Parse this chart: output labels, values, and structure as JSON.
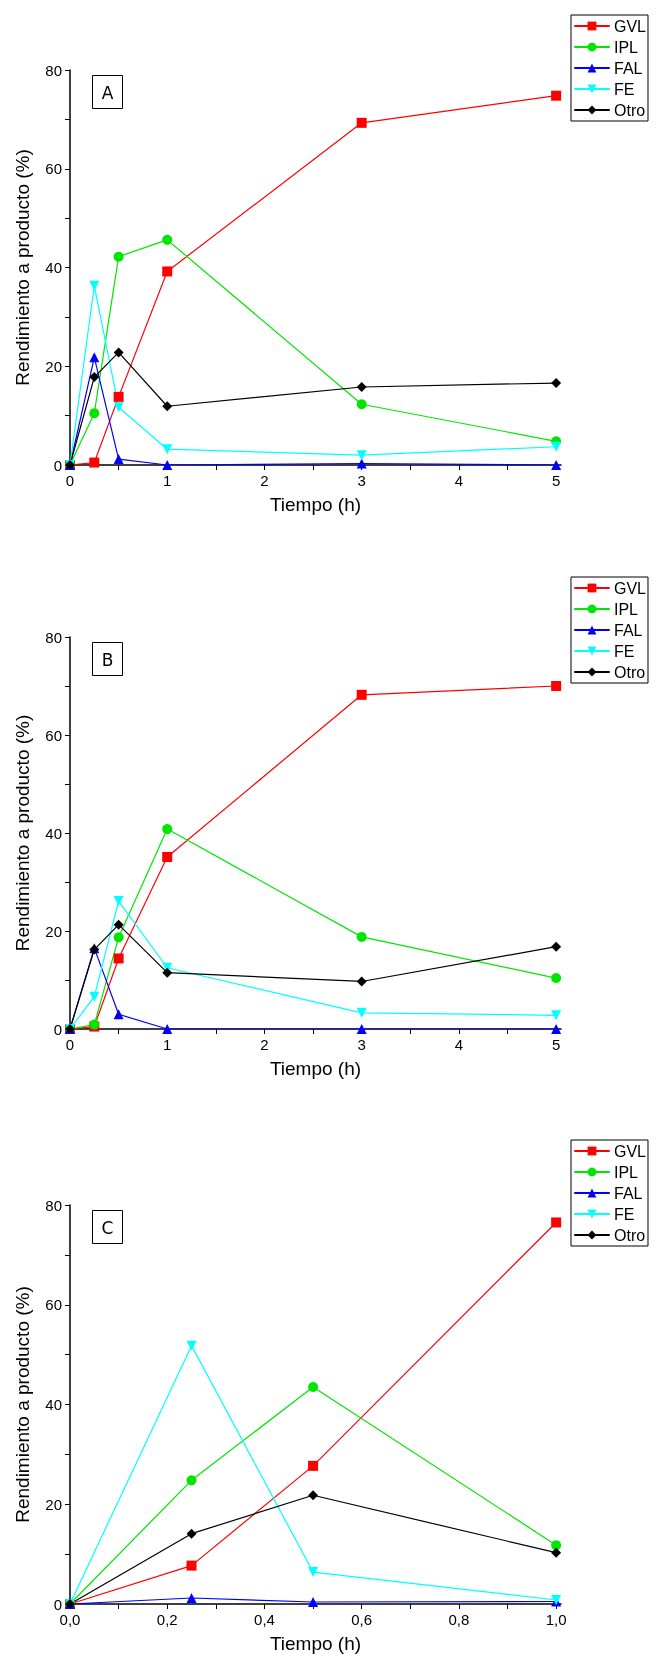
{
  "chart_data": [
    {
      "type": "line",
      "xlabel": "Tiempo (h)",
      "ylabel": "Rendimiento a producto (%)",
      "annotations": [
        "A"
      ],
      "legend": "top right",
      "grid": false,
      "xlim": [
        0,
        5.05
      ],
      "xticks": [
        0,
        {
          "value": 0.5,
          "label": null
        },
        1,
        {
          "value": 1.5,
          "label": null
        },
        2,
        {
          "value": 2.5,
          "label": null
        },
        3,
        {
          "value": 3.5,
          "label": null
        },
        4,
        {
          "value": 4.5,
          "label": null
        },
        5
      ],
      "ylim": [
        0,
        80
      ],
      "yticks": [
        0,
        {
          "value": 10,
          "label": null
        },
        20,
        {
          "value": 30,
          "label": null
        },
        40,
        {
          "value": 50,
          "label": null
        },
        60,
        {
          "value": 70,
          "label": null
        },
        80
      ],
      "x": [
        0,
        0.25,
        0.5,
        1,
        3,
        5
      ],
      "series": [
        {
          "name": "GVL",
          "color": "#ff0000",
          "marker": "square",
          "values": [
            0,
            0.5,
            13.8,
            39.2,
            69.3,
            74.8
          ]
        },
        {
          "name": "IPL",
          "color": "#00e600",
          "marker": "circle",
          "values": [
            0,
            10.5,
            42.2,
            45.6,
            12.3,
            4.8
          ]
        },
        {
          "name": "FAL",
          "color": "#0000ff",
          "marker": "triangle",
          "values": [
            0,
            21.8,
            1.2,
            0,
            0.3,
            0
          ]
        },
        {
          "name": "FE",
          "color": "#00ffff",
          "marker": "triangle-down",
          "values": [
            0,
            36.3,
            11.7,
            3.2,
            2.0,
            3.7
          ]
        },
        {
          "name": "Otro",
          "color": "#000000",
          "marker": "diamond",
          "values": [
            0,
            17.8,
            22.8,
            11.9,
            15.8,
            16.6
          ]
        }
      ]
    },
    {
      "type": "line",
      "xlabel": "Tiempo (h)",
      "ylabel": "Rendimiento a producto (%)",
      "annotations": [
        "B"
      ],
      "legend": "top right",
      "grid": false,
      "xlim": [
        0,
        5.05
      ],
      "xticks": [
        0,
        {
          "value": 0.5,
          "label": null
        },
        1,
        {
          "value": 1.5,
          "label": null
        },
        2,
        {
          "value": 2.5,
          "label": null
        },
        3,
        {
          "value": 3.5,
          "label": null
        },
        4,
        {
          "value": 4.5,
          "label": null
        },
        5
      ],
      "ylim": [
        0,
        80
      ],
      "yticks": [
        0,
        {
          "value": 10,
          "label": null
        },
        20,
        {
          "value": 30,
          "label": null
        },
        40,
        {
          "value": 50,
          "label": null
        },
        60,
        {
          "value": 70,
          "label": null
        },
        80
      ],
      "x": [
        0,
        0.25,
        0.5,
        1,
        3,
        5
      ],
      "series": [
        {
          "name": "GVL",
          "color": "#ff0000",
          "marker": "square",
          "values": [
            0,
            0.5,
            14.4,
            35.1,
            68.2,
            70.0
          ]
        },
        {
          "name": "IPL",
          "color": "#00e600",
          "marker": "circle",
          "values": [
            0,
            0.9,
            18.7,
            40.8,
            18.8,
            10.4
          ]
        },
        {
          "name": "FAL",
          "color": "#0000ff",
          "marker": "triangle",
          "values": [
            0,
            16.5,
            3.0,
            0,
            0,
            0
          ]
        },
        {
          "name": "FE",
          "color": "#00ffff",
          "marker": "triangle-down",
          "values": [
            0,
            6.6,
            26.1,
            12.5,
            3.3,
            2.8
          ]
        },
        {
          "name": "Otro",
          "color": "#000000",
          "marker": "diamond",
          "values": [
            0,
            16.2,
            21.3,
            11.5,
            9.7,
            16.8
          ]
        }
      ]
    },
    {
      "type": "line",
      "xlabel": "Tiempo (h)",
      "ylabel": "Rendimiento a producto (%)",
      "annotations": [
        "C"
      ],
      "legend": "top right",
      "grid": false,
      "xlim": [
        0,
        1.01
      ],
      "xticks": [
        {
          "value": 0,
          "label": "0,0"
        },
        {
          "value": 0.1,
          "label": null
        },
        {
          "value": 0.2,
          "label": "0,2"
        },
        {
          "value": 0.3,
          "label": null
        },
        {
          "value": 0.4,
          "label": "0,4"
        },
        {
          "value": 0.5,
          "label": null
        },
        {
          "value": 0.6,
          "label": "0,6"
        },
        {
          "value": 0.7,
          "label": null
        },
        {
          "value": 0.8,
          "label": "0,8"
        },
        {
          "value": 0.9,
          "label": null
        },
        {
          "value": 1,
          "label": "1,0"
        }
      ],
      "ylim": [
        0,
        80
      ],
      "yticks": [
        0,
        {
          "value": 10,
          "label": null
        },
        20,
        {
          "value": 30,
          "label": null
        },
        40,
        {
          "value": 50,
          "label": null
        },
        60,
        {
          "value": 70,
          "label": null
        },
        80
      ],
      "x": [
        0,
        0.25,
        0.5,
        1
      ],
      "series": [
        {
          "name": "GVL",
          "color": "#ff0000",
          "marker": "square",
          "values": [
            0,
            7.7,
            27.7,
            76.5
          ]
        },
        {
          "name": "IPL",
          "color": "#00e600",
          "marker": "circle",
          "values": [
            0,
            24.8,
            43.5,
            11.8
          ]
        },
        {
          "name": "FAL",
          "color": "#0000ff",
          "marker": "triangle",
          "values": [
            0,
            1.2,
            0.4,
            0.5
          ]
        },
        {
          "name": "FE",
          "color": "#00ffff",
          "marker": "triangle-down",
          "values": [
            0,
            51.8,
            6.4,
            0.8
          ]
        },
        {
          "name": "Otro",
          "color": "#000000",
          "marker": "diamond",
          "values": [
            0,
            14.1,
            21.8,
            10.3
          ]
        }
      ]
    }
  ]
}
